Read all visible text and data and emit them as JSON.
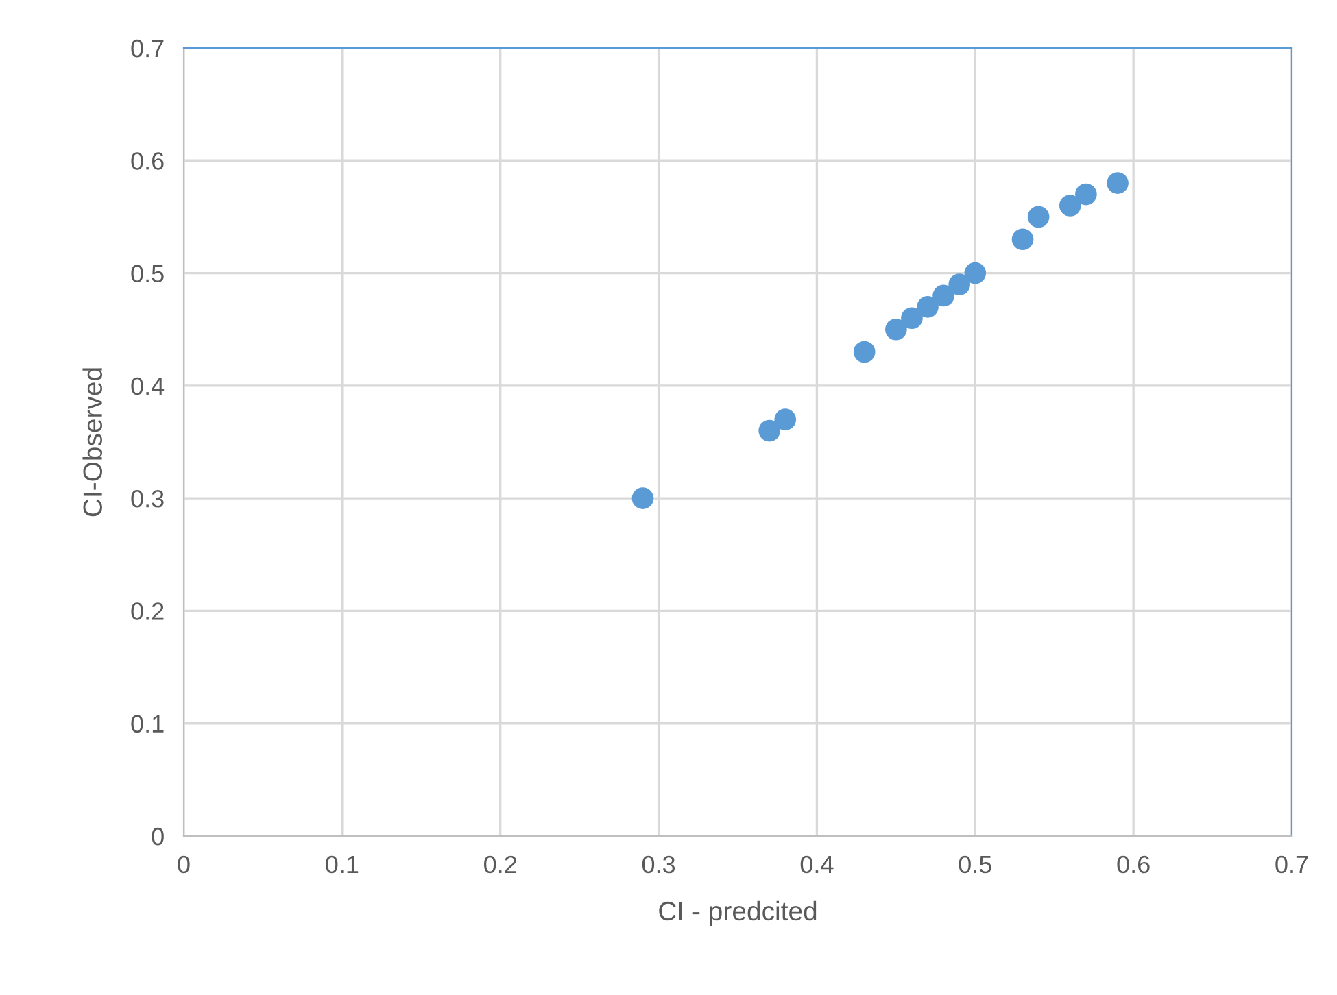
{
  "chart_data": {
    "type": "scatter",
    "xlabel": "CI - predcited",
    "ylabel": "CI-Observed",
    "x": [
      0.29,
      0.37,
      0.38,
      0.43,
      0.45,
      0.46,
      0.47,
      0.48,
      0.49,
      0.5,
      0.53,
      0.54,
      0.56,
      0.57,
      0.59
    ],
    "series": [
      {
        "color": "#5b9bd5",
        "values": [
          0.3,
          0.36,
          0.37,
          0.43,
          0.45,
          0.46,
          0.47,
          0.48,
          0.49,
          0.5,
          0.53,
          0.55,
          0.56,
          0.57,
          0.58
        ]
      }
    ],
    "xlim": [
      0,
      0.7
    ],
    "ylim": [
      0,
      0.7
    ],
    "xticks": [
      0,
      0.1,
      0.2,
      0.3,
      0.4,
      0.5,
      0.6,
      0.7
    ],
    "yticks": [
      0,
      0.1,
      0.2,
      0.3,
      0.4,
      0.5,
      0.6,
      0.7
    ],
    "grid": true,
    "marker": "circle"
  }
}
